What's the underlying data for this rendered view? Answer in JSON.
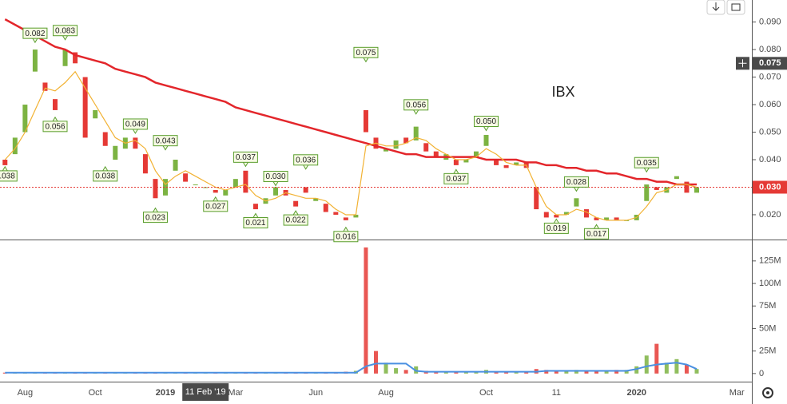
{
  "chart_data": {
    "type": "candlestick",
    "title": "IBX",
    "categories": [
      null,
      null,
      "Aug",
      null,
      null,
      null,
      null,
      null,
      null,
      "Oct",
      null,
      null,
      null,
      null,
      null,
      null,
      "2019",
      null,
      null,
      null,
      null,
      null,
      null,
      "Mar",
      null,
      null,
      null,
      null,
      null,
      null,
      null,
      "Jun",
      null,
      null,
      null,
      null,
      null,
      null,
      "Aug",
      null,
      null,
      null,
      null,
      null,
      null,
      null,
      null,
      null,
      "Oct",
      null,
      null,
      null,
      null,
      null,
      null,
      "11",
      null,
      null,
      null,
      null,
      null,
      null,
      null,
      "2020",
      null,
      null,
      null,
      null,
      null,
      null,
      null,
      null,
      null,
      "Mar",
      null
    ],
    "open": [
      0.04,
      0.042,
      0.05,
      0.072,
      0.068,
      0.062,
      0.074,
      0.079,
      0.07,
      0.055,
      0.05,
      0.04,
      0.044,
      0.048,
      0.042,
      0.033,
      0.027,
      0.036,
      0.035,
      0.031,
      0.03,
      0.029,
      0.027,
      0.03,
      0.036,
      0.024,
      0.024,
      0.027,
      0.029,
      0.025,
      0.03,
      0.025,
      0.024,
      0.021,
      0.019,
      0.019,
      0.058,
      0.048,
      0.043,
      0.044,
      0.048,
      0.047,
      0.046,
      0.043,
      0.04,
      0.04,
      0.039,
      0.041,
      0.045,
      0.04,
      0.038,
      0.038,
      0.039,
      0.03,
      0.021,
      0.02,
      0.02,
      0.023,
      0.022,
      0.019,
      0.018,
      0.019,
      0.018,
      0.018,
      0.025,
      0.03,
      0.028,
      0.033,
      0.032,
      0.028,
      null,
      null,
      null,
      null,
      null
    ],
    "close": [
      0.038,
      0.048,
      0.06,
      0.08,
      0.065,
      0.058,
      0.08,
      0.075,
      0.048,
      0.058,
      0.045,
      0.045,
      0.048,
      0.044,
      0.035,
      0.026,
      0.033,
      0.04,
      0.032,
      0.031,
      0.03,
      0.028,
      0.029,
      0.033,
      0.028,
      0.022,
      0.026,
      0.03,
      0.027,
      0.023,
      0.028,
      0.026,
      0.021,
      0.02,
      0.018,
      0.02,
      0.05,
      0.044,
      0.044,
      0.047,
      0.046,
      0.052,
      0.043,
      0.041,
      0.042,
      0.038,
      0.04,
      0.043,
      0.049,
      0.038,
      0.037,
      0.039,
      0.037,
      0.022,
      0.019,
      0.019,
      0.021,
      0.026,
      0.019,
      0.018,
      0.019,
      0.018,
      0.018,
      0.02,
      0.031,
      0.029,
      0.03,
      0.034,
      0.028,
      0.03,
      null,
      null,
      null,
      null,
      null
    ],
    "up_color": "#7cb342",
    "down_color": "#e53935",
    "ylim": [
      0.011,
      0.098
    ],
    "yticks": [
      {
        "value": 0.02,
        "label": "0.020"
      },
      {
        "value": 0.03,
        "label": "0.030"
      },
      {
        "value": 0.04,
        "label": "0.040"
      },
      {
        "value": 0.05,
        "label": "0.050"
      },
      {
        "value": 0.06,
        "label": "0.060"
      },
      {
        "value": 0.07,
        "label": "0.070"
      },
      {
        "value": 0.08,
        "label": "0.080"
      },
      {
        "value": 0.09,
        "label": "0.090"
      }
    ],
    "overlays": [
      {
        "color": "#e3262b",
        "values": [
          0.091,
          0.089,
          0.087,
          0.085,
          0.083,
          0.081,
          0.08,
          0.078,
          0.077,
          0.076,
          0.075,
          0.073,
          0.072,
          0.071,
          0.07,
          0.068,
          0.067,
          0.066,
          0.065,
          0.064,
          0.063,
          0.062,
          0.061,
          0.059,
          0.058,
          0.057,
          0.056,
          0.055,
          0.054,
          0.053,
          0.052,
          0.051,
          0.05,
          0.049,
          0.048,
          0.047,
          0.046,
          0.045,
          0.044,
          0.043,
          0.042,
          0.042,
          0.041,
          0.041,
          0.041,
          0.041,
          0.041,
          0.041,
          0.04,
          0.04,
          0.04,
          0.04,
          0.039,
          0.039,
          0.038,
          0.038,
          0.037,
          0.037,
          0.036,
          0.036,
          0.035,
          0.035,
          0.034,
          0.033,
          0.033,
          0.032,
          0.032,
          0.031,
          0.031,
          0.031,
          null,
          null,
          null,
          null,
          null
        ]
      },
      {
        "color": "#f2b233",
        "values": [
          0.04,
          0.044,
          0.05,
          0.058,
          0.066,
          0.065,
          0.068,
          0.072,
          0.066,
          0.06,
          0.054,
          0.048,
          0.046,
          0.047,
          0.044,
          0.036,
          0.031,
          0.034,
          0.036,
          0.034,
          0.032,
          0.03,
          0.029,
          0.03,
          0.031,
          0.027,
          0.025,
          0.026,
          0.028,
          0.027,
          0.026,
          0.026,
          0.025,
          0.022,
          0.02,
          0.02,
          0.045,
          0.046,
          0.045,
          0.045,
          0.046,
          0.048,
          0.047,
          0.044,
          0.042,
          0.04,
          0.04,
          0.041,
          0.044,
          0.042,
          0.039,
          0.038,
          0.038,
          0.03,
          0.023,
          0.02,
          0.02,
          0.022,
          0.021,
          0.019,
          0.018,
          0.018,
          0.018,
          0.019,
          0.023,
          0.028,
          0.029,
          0.031,
          0.031,
          0.03,
          null,
          null,
          null,
          null,
          null
        ]
      }
    ],
    "annotations": [
      {
        "bar": 0,
        "value": 0.038,
        "label": "0.038"
      },
      {
        "bar": 3,
        "value": 0.082,
        "label": "0.082"
      },
      {
        "bar": 5,
        "value": 0.056,
        "label": "0.056"
      },
      {
        "bar": 6,
        "value": 0.083,
        "label": "0.083"
      },
      {
        "bar": 10,
        "value": 0.038,
        "label": "0.038"
      },
      {
        "bar": 13,
        "value": 0.049,
        "label": "0.049"
      },
      {
        "bar": 15,
        "value": 0.023,
        "label": "0.023"
      },
      {
        "bar": 16,
        "value": 0.043,
        "label": "0.043"
      },
      {
        "bar": 21,
        "value": 0.027,
        "label": "0.027"
      },
      {
        "bar": 24,
        "value": 0.037,
        "label": "0.037"
      },
      {
        "bar": 25,
        "value": 0.021,
        "label": "0.021"
      },
      {
        "bar": 27,
        "value": 0.03,
        "label": "0.030"
      },
      {
        "bar": 29,
        "value": 0.022,
        "label": "0.022"
      },
      {
        "bar": 30,
        "value": 0.036,
        "label": "0.036"
      },
      {
        "bar": 34,
        "value": 0.016,
        "label": "0.016"
      },
      {
        "bar": 36,
        "value": 0.075,
        "label": "0.075"
      },
      {
        "bar": 41,
        "value": 0.056,
        "label": "0.056"
      },
      {
        "bar": 45,
        "value": 0.037,
        "label": "0.037"
      },
      {
        "bar": 48,
        "value": 0.05,
        "label": "0.050"
      },
      {
        "bar": 55,
        "value": 0.019,
        "label": "0.019"
      },
      {
        "bar": 57,
        "value": 0.028,
        "label": "0.028"
      },
      {
        "bar": 59,
        "value": 0.017,
        "label": "0.017"
      },
      {
        "bar": 64,
        "value": 0.035,
        "label": "0.035"
      }
    ],
    "last_price": {
      "value": 0.03,
      "label": "0.030",
      "color": "#e53935"
    },
    "crosshair": {
      "bar": 20,
      "date_label": "11 Feb '19",
      "value": 0.075,
      "label": "0.075"
    },
    "volume": {
      "ylim": [
        -9,
        147
      ],
      "yticks": [
        0,
        {
          "value": 25,
          "label": "25M"
        },
        {
          "value": 50,
          "label": "50M"
        },
        {
          "value": 75,
          "label": "75M"
        },
        {
          "value": 100,
          "label": "100M"
        },
        {
          "value": 125,
          "label": "125M"
        }
      ],
      "values": [
        1,
        1,
        1,
        1,
        1,
        1,
        1,
        1,
        1,
        1,
        1,
        1,
        1,
        1,
        1,
        1,
        1,
        1,
        1,
        1,
        1,
        1,
        1,
        1,
        1,
        1,
        1,
        1,
        1,
        1,
        1,
        1,
        1,
        1,
        2,
        3,
        140,
        25,
        12,
        6,
        4,
        8,
        3,
        2,
        2,
        2,
        2,
        2,
        4,
        2,
        2,
        2,
        2,
        5,
        4,
        3,
        3,
        4,
        3,
        3,
        3,
        4,
        4,
        8,
        20,
        33,
        12,
        16,
        10,
        5,
        null,
        null,
        null,
        null,
        null
      ],
      "ma": {
        "color": "#4a90e2",
        "values": [
          1,
          1,
          1,
          1,
          1,
          1,
          1,
          1,
          1,
          1,
          1,
          1,
          1,
          1,
          1,
          1,
          1,
          1,
          1,
          1,
          1,
          1,
          1,
          1,
          1,
          1,
          1,
          1,
          1,
          1,
          1,
          1,
          1,
          1,
          1,
          1,
          8,
          11,
          11,
          11,
          11,
          3,
          2,
          2,
          2,
          2,
          2,
          2,
          2,
          2,
          2,
          2,
          2,
          2,
          3,
          3,
          3,
          3,
          3,
          3,
          3,
          3,
          3,
          5,
          8,
          10,
          11,
          12,
          10,
          5,
          null,
          null,
          null,
          null,
          null
        ]
      }
    }
  }
}
